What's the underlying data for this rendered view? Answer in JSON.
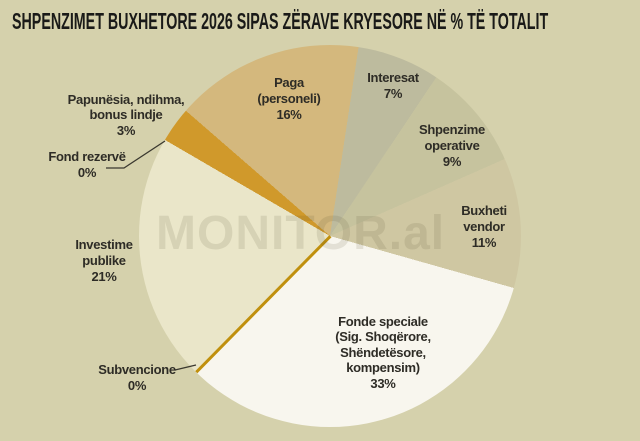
{
  "title": "SHPENZIMET BUXHETORE 2026 SIPAS ZËRAVE KRYESORE NË % TË TOTALIT",
  "watermark": "MONITOR.al",
  "colors": {
    "background": "#d5d1ac",
    "title_text": "#1a1a18",
    "label_text": "#2e2c26",
    "leader_line": "#3a382f",
    "watermark_text": "rgba(82,76,45,0.13)"
  },
  "chart_data": {
    "type": "pie",
    "title": "SHPENZIMET BUXHETORE 2026 SIPAS ZËRAVE KRYESORE NË % TË TOTALIT",
    "units": "% të totalit",
    "start_angle_deg": -49,
    "direction": "clockwise",
    "legend_position": "labels-on-chart",
    "slices": [
      {
        "label": "Paga (personeli)",
        "value_pct": 16,
        "color": "#d4b87d"
      },
      {
        "label": "Interesat",
        "value_pct": 7,
        "color": "#bdbb9e"
      },
      {
        "label": "Shpenzime operative",
        "value_pct": 9,
        "color": "#c6c39e"
      },
      {
        "label": "Buxheti vendor",
        "value_pct": 11,
        "color": "#cfc7a2"
      },
      {
        "label": "Fonde speciale (Sig. Shoqërore, Shëndetësore, kompensim)",
        "value_pct": 33,
        "color": "#f8f6ee"
      },
      {
        "label": "Subvencione",
        "value_pct": 0,
        "color": "#c0900e",
        "render": "hairline"
      },
      {
        "label": "Investime publike",
        "value_pct": 21,
        "color": "#eae6c9"
      },
      {
        "label": "Fond rezervë",
        "value_pct": 0,
        "color": "#c0900e",
        "render": "boundary"
      },
      {
        "label": "Papunësia, ndihma, bonus lindje",
        "value_pct": 3,
        "color": "#d0992b"
      }
    ]
  },
  "labels": {
    "paga": [
      "Paga",
      "(personeli)",
      "16%"
    ],
    "interesat": [
      "Interesat",
      "7%"
    ],
    "shpenzime": [
      "Shpenzime",
      "operative",
      "9%"
    ],
    "buxheti": [
      "Buxheti",
      "vendor",
      "11%"
    ],
    "fonde_speciale": [
      "Fonde speciale",
      "(Sig. Shoqërore,",
      "Shëndetësore,",
      "kompensim)",
      "33%"
    ],
    "papunesia": [
      "Papunësia, ndihma,",
      "bonus lindje",
      "3%"
    ],
    "fond_rezerve": [
      "Fond rezervë",
      "0%"
    ],
    "investime": [
      "Investime",
      "publike",
      "21%"
    ],
    "subvencione": [
      "Subvencione",
      "0%"
    ]
  }
}
